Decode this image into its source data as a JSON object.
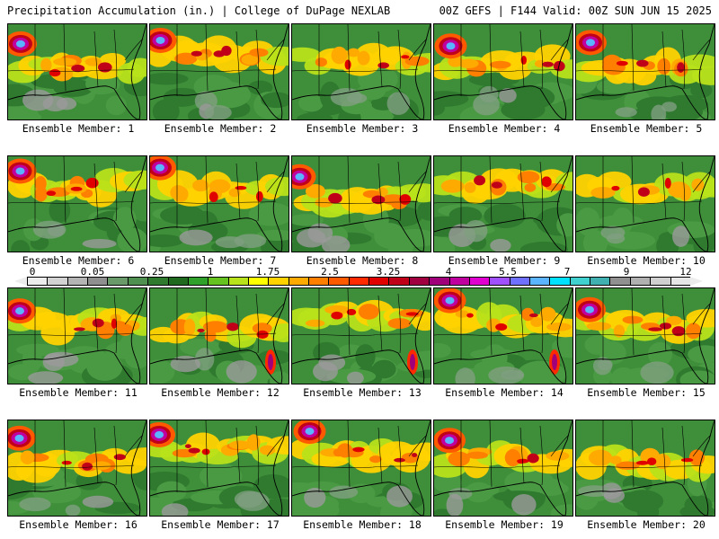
{
  "header": {
    "left": "Precipitation Accumulation (in.) | College of DuPage NEXLAB",
    "right": "00Z GEFS | F144 Valid: 00Z SUN JUN 15 2025"
  },
  "colorbar": {
    "labels": [
      "0",
      "0.05",
      "0.25",
      "1",
      "1.75",
      "2.5",
      "3.25",
      "4",
      "5.5",
      "7",
      "9",
      "12"
    ],
    "label_values": [
      0,
      0.05,
      0.25,
      1,
      1.75,
      2.5,
      3.25,
      4,
      5.5,
      7,
      9,
      12
    ],
    "colors": [
      "#ececec",
      "#d2d2d2",
      "#b4b4b4",
      "#8f8f8f",
      "#6a9a6a",
      "#4f8f4f",
      "#2f7a2f",
      "#1f6a1f",
      "#2fa02a",
      "#66c21e",
      "#b8e21a",
      "#ffff00",
      "#ffd200",
      "#ffaa00",
      "#ff8000",
      "#ff5a00",
      "#ff2a00",
      "#e00000",
      "#c00018",
      "#a00040",
      "#a0007a",
      "#c0009e",
      "#e000d0",
      "#a050ff",
      "#7070ff",
      "#5ab4ff",
      "#00e0ff",
      "#40d0d0",
      "#40b0b0",
      "#909090",
      "#b0b0b0",
      "#d0d0d0",
      "#e6e6e6"
    ]
  },
  "panels": [
    {
      "label": "Ensemble Member: 1"
    },
    {
      "label": "Ensemble Member: 2"
    },
    {
      "label": "Ensemble Member: 3"
    },
    {
      "label": "Ensemble Member: 4"
    },
    {
      "label": "Ensemble Member: 5"
    },
    {
      "label": "Ensemble Member: 6"
    },
    {
      "label": "Ensemble Member: 7"
    },
    {
      "label": "Ensemble Member: 8"
    },
    {
      "label": "Ensemble Member: 9"
    },
    {
      "label": "Ensemble Member: 10"
    },
    {
      "label": "Ensemble Member: 11"
    },
    {
      "label": "Ensemble Member: 12"
    },
    {
      "label": "Ensemble Member: 13"
    },
    {
      "label": "Ensemble Member: 14"
    },
    {
      "label": "Ensemble Member: 15"
    },
    {
      "label": "Ensemble Member: 16"
    },
    {
      "label": "Ensemble Member: 17"
    },
    {
      "label": "Ensemble Member: 18"
    },
    {
      "label": "Ensemble Member: 19"
    },
    {
      "label": "Ensemble Member: 20"
    }
  ]
}
